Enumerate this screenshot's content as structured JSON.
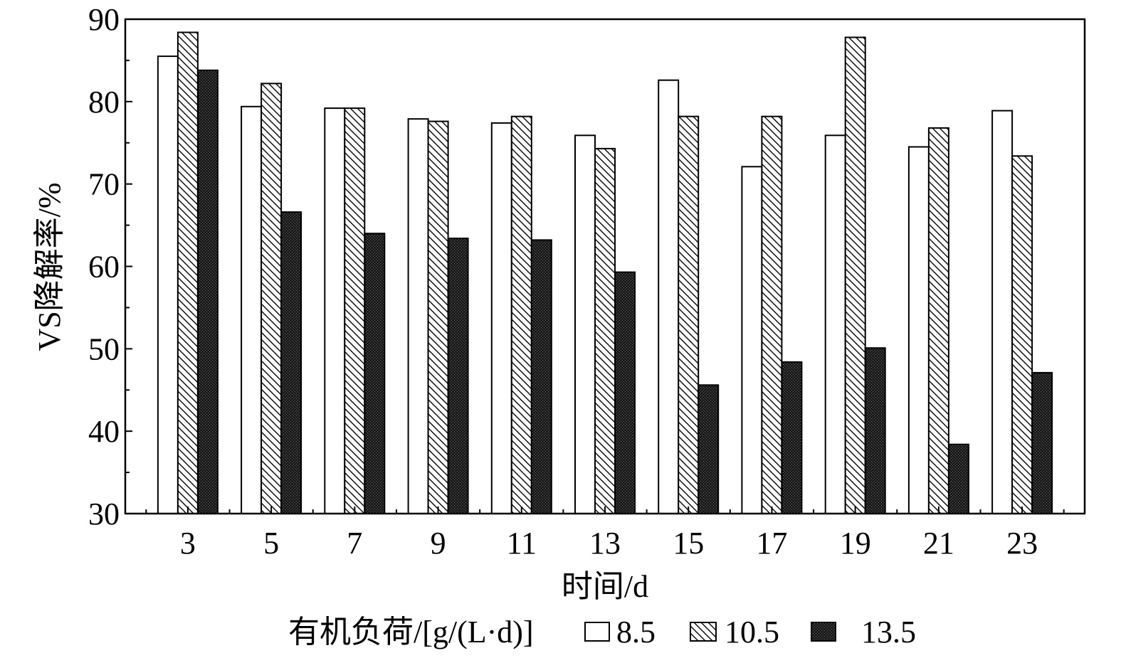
{
  "chart_data": {
    "type": "bar",
    "title": "",
    "xlabel": "时间/d",
    "ylabel": "VS降解率/%",
    "categories": [
      "3",
      "5",
      "7",
      "9",
      "11",
      "13",
      "15",
      "17",
      "19",
      "21",
      "23"
    ],
    "series": [
      {
        "name": "8.5",
        "pattern": "open",
        "values": [
          85.5,
          79.4,
          79.2,
          77.9,
          77.4,
          75.9,
          82.6,
          72.1,
          75.9,
          74.5,
          78.9
        ]
      },
      {
        "name": "10.5",
        "pattern": "hatched",
        "values": [
          88.4,
          82.2,
          79.2,
          77.6,
          78.2,
          74.3,
          78.2,
          78.2,
          87.8,
          76.8,
          73.4
        ]
      },
      {
        "name": "13.5",
        "pattern": "dark",
        "values": [
          83.8,
          66.6,
          64.0,
          63.4,
          63.2,
          59.3,
          45.6,
          48.4,
          50.1,
          38.4,
          47.1
        ]
      }
    ],
    "ylim": [
      30,
      90
    ],
    "yticks": [
      "30",
      "40",
      "50",
      "60",
      "70",
      "80",
      "90"
    ],
    "grid": false,
    "legend": {
      "title": "有机负荷/[g/(L·d)]",
      "placement": "bottom"
    }
  }
}
